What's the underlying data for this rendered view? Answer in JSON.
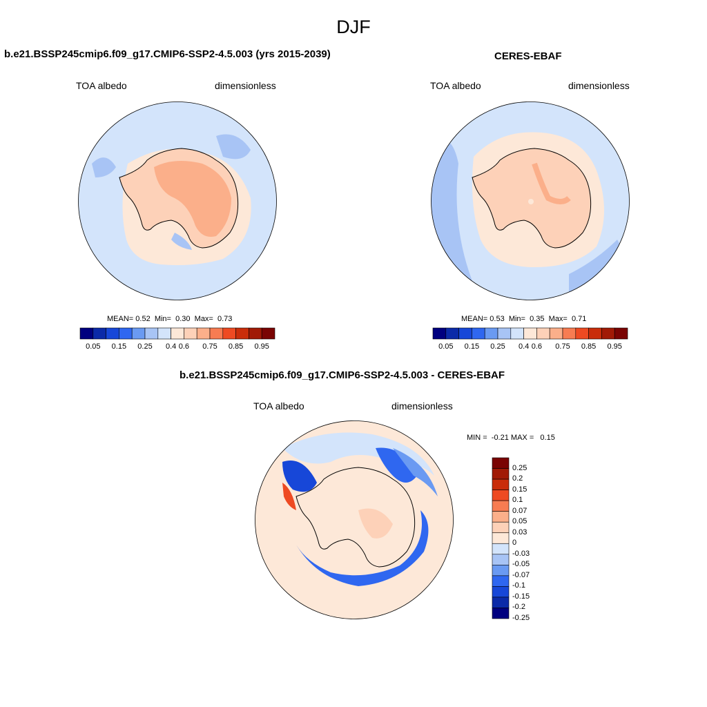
{
  "title": "DJF",
  "panels": [
    {
      "title": "b.e21.BSSP245cmip6.f09_g17.CMIP6-SSP2-4.5.003 (yrs 2015-2039)",
      "left_label": "TOA albedo",
      "right_label": "dimensionless",
      "stats": {
        "mean_label": "MEAN=",
        "mean": "0.52",
        "min_label": "Min=",
        "min": "0.30",
        "max_label": "Max=",
        "max": "0.73"
      }
    },
    {
      "title": "CERES-EBAF",
      "left_label": "TOA albedo",
      "right_label": "dimensionless",
      "stats": {
        "mean_label": "MEAN=",
        "mean": "0.53",
        "min_label": "Min=",
        "min": "0.35",
        "max_label": "Max=",
        "max": "0.71"
      }
    },
    {
      "title": "b.e21.BSSP245cmip6.f09_g17.CMIP6-SSP2-4.5.003 - CERES-EBAF",
      "left_label": "TOA albedo",
      "right_label": "dimensionless",
      "stats": {
        "min_label": "MIN =",
        "min": "-0.21",
        "max_label": "MAX =",
        "max": "0.15"
      }
    }
  ],
  "colorbar_abs": {
    "colors": [
      "#00007f",
      "#0b2aa8",
      "#1747d8",
      "#2f67f0",
      "#6a9af2",
      "#a8c4f5",
      "#d3e4fb",
      "#fde8d8",
      "#fdd1b8",
      "#fbaf8a",
      "#f77c52",
      "#ee4a22",
      "#c92d0a",
      "#a11a06",
      "#7a0403"
    ],
    "tick_labels": [
      "0.05",
      "0.15",
      "0.25",
      "0.4",
      "0.6",
      "0.75",
      "0.85",
      "0.95"
    ]
  },
  "colorbar_diff": {
    "colors": [
      "#7a0403",
      "#a11a06",
      "#c92d0a",
      "#ee4a22",
      "#f77c52",
      "#fbaf8a",
      "#fdd1b8",
      "#fde8d8",
      "#d3e4fb",
      "#a8c4f5",
      "#6a9af2",
      "#2f67f0",
      "#1747d8",
      "#0b2aa8",
      "#00007f"
    ],
    "tick_labels": [
      "0.25",
      "0.2",
      "0.15",
      "0.1",
      "0.07",
      "0.05",
      "0.03",
      "0",
      "-0.03",
      "-0.05",
      "-0.07",
      "-0.1",
      "-0.15",
      "-0.2",
      "-0.25"
    ]
  }
}
